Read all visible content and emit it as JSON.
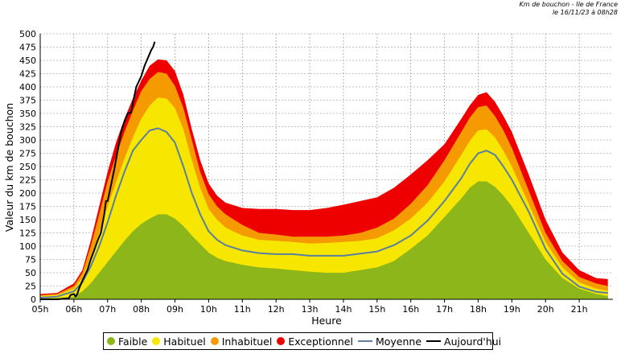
{
  "header": {
    "line1": "Km de bouchon - Ile de France",
    "line2": "le 16/11/23 à 08h28"
  },
  "colors": {
    "faible": "#8db61a",
    "habituel": "#f7e600",
    "inhabituel": "#f59a00",
    "exceptionnel": "#ee0000",
    "moyenne": "#5a7fa0",
    "aujourdhui": "#000000"
  },
  "chart_data": {
    "type": "area",
    "title": "",
    "xlabel": "Heure",
    "ylabel": "Valeur du  km de bouchon",
    "ylim": [
      0,
      500
    ],
    "yticks": [
      0,
      25,
      50,
      75,
      100,
      125,
      150,
      175,
      200,
      225,
      250,
      275,
      300,
      325,
      350,
      375,
      400,
      425,
      450,
      475,
      500
    ],
    "xlim": [
      5.0,
      22.0
    ],
    "xticks": [
      {
        "v": 5,
        "label": "05h"
      },
      {
        "v": 6,
        "label": "06h"
      },
      {
        "v": 7,
        "label": "07h"
      },
      {
        "v": 8,
        "label": "08h"
      },
      {
        "v": 9,
        "label": "09h"
      },
      {
        "v": 10,
        "label": "10h"
      },
      {
        "v": 11,
        "label": "11h"
      },
      {
        "v": 12,
        "label": "12h"
      },
      {
        "v": 13,
        "label": "13h"
      },
      {
        "v": 14,
        "label": "14h"
      },
      {
        "v": 15,
        "label": "15h"
      },
      {
        "v": 16,
        "label": "16h"
      },
      {
        "v": 17,
        "label": "17h"
      },
      {
        "v": 18,
        "label": "18h"
      },
      {
        "v": 19,
        "label": "19h"
      },
      {
        "v": 20,
        "label": "20h"
      },
      {
        "v": 21,
        "label": "21h"
      }
    ],
    "grid": true,
    "legend_position": "bottom",
    "x": [
      5.0,
      5.5,
      6.0,
      6.25,
      6.5,
      6.75,
      7.0,
      7.25,
      7.5,
      7.75,
      8.0,
      8.25,
      8.5,
      8.75,
      9.0,
      9.25,
      9.5,
      9.75,
      10.0,
      10.25,
      10.5,
      11.0,
      11.5,
      12.0,
      12.5,
      13.0,
      13.5,
      14.0,
      14.5,
      15.0,
      15.5,
      16.0,
      16.5,
      17.0,
      17.5,
      17.75,
      18.0,
      18.25,
      18.5,
      18.75,
      19.0,
      19.5,
      20.0,
      20.5,
      21.0,
      21.5,
      21.85
    ],
    "series": [
      {
        "name": "Faible",
        "kind": "band",
        "values": [
          2,
          2,
          5,
          15,
          30,
          50,
          70,
          90,
          110,
          128,
          142,
          152,
          160,
          160,
          152,
          138,
          120,
          104,
          88,
          78,
          72,
          65,
          60,
          58,
          55,
          52,
          50,
          50,
          55,
          60,
          72,
          95,
          120,
          155,
          190,
          210,
          222,
          222,
          212,
          195,
          175,
          125,
          75,
          40,
          20,
          10,
          6
        ]
      },
      {
        "name": "Habituel",
        "kind": "band",
        "values": [
          6,
          8,
          20,
          40,
          80,
          125,
          175,
          220,
          265,
          305,
          340,
          365,
          380,
          378,
          360,
          320,
          262,
          210,
          170,
          150,
          135,
          120,
          112,
          110,
          108,
          105,
          106,
          108,
          110,
          115,
          130,
          152,
          182,
          222,
          272,
          298,
          318,
          320,
          305,
          280,
          250,
          180,
          108,
          60,
          32,
          20,
          16
        ]
      },
      {
        "name": "Inhabituel",
        "kind": "band",
        "values": [
          8,
          10,
          25,
          50,
          100,
          160,
          222,
          270,
          315,
          355,
          392,
          415,
          428,
          425,
          402,
          360,
          300,
          240,
          198,
          175,
          160,
          140,
          125,
          122,
          118,
          118,
          118,
          120,
          125,
          135,
          152,
          180,
          215,
          262,
          315,
          342,
          362,
          365,
          345,
          318,
          285,
          205,
          125,
          72,
          42,
          30,
          25
        ]
      },
      {
        "name": "Exceptionnel",
        "kind": "band",
        "values": [
          10,
          12,
          30,
          55,
          110,
          175,
          240,
          295,
          340,
          378,
          412,
          440,
          452,
          450,
          430,
          385,
          320,
          262,
          218,
          195,
          182,
          172,
          170,
          170,
          168,
          168,
          172,
          178,
          185,
          192,
          210,
          235,
          262,
          292,
          340,
          365,
          385,
          390,
          372,
          345,
          315,
          235,
          150,
          88,
          55,
          40,
          38
        ]
      },
      {
        "name": "Moyenne",
        "kind": "line",
        "values": [
          3,
          5,
          15,
          32,
          62,
          100,
          145,
          195,
          240,
          280,
          300,
          318,
          322,
          315,
          295,
          250,
          200,
          160,
          128,
          112,
          102,
          92,
          87,
          85,
          85,
          82,
          82,
          82,
          86,
          90,
          102,
          120,
          148,
          185,
          228,
          255,
          275,
          280,
          272,
          250,
          225,
          165,
          95,
          48,
          24,
          14,
          12
        ]
      },
      {
        "name": "Aujourd'hui",
        "kind": "line",
        "x": [
          5.0,
          5.5,
          5.85,
          5.9,
          6.0,
          6.05,
          6.1,
          6.15,
          6.25,
          6.4,
          6.5,
          6.6,
          6.7,
          6.8,
          6.9,
          6.95,
          7.0,
          7.1,
          7.2,
          7.3,
          7.4,
          7.5,
          7.6,
          7.7,
          7.75,
          7.85,
          8.0,
          8.1,
          8.2,
          8.3,
          8.35,
          8.4
        ],
        "values": [
          0,
          0,
          2,
          8,
          10,
          5,
          10,
          20,
          35,
          55,
          75,
          92,
          110,
          125,
          160,
          185,
          185,
          215,
          245,
          280,
          315,
          335,
          350,
          352,
          370,
          400,
          420,
          440,
          455,
          470,
          475,
          485
        ]
      }
    ]
  },
  "legend": [
    {
      "label": "Faible",
      "type": "dot",
      "color_key": "faible"
    },
    {
      "label": "Habituel",
      "type": "dot",
      "color_key": "habituel"
    },
    {
      "label": "Inhabituel",
      "type": "dot",
      "color_key": "inhabituel"
    },
    {
      "label": "Exceptionnel",
      "type": "dot",
      "color_key": "exceptionnel"
    },
    {
      "label": "Moyenne",
      "type": "line",
      "color_key": "moyenne"
    },
    {
      "label": "Aujourd'hui",
      "type": "line",
      "color_key": "aujourdhui"
    }
  ]
}
